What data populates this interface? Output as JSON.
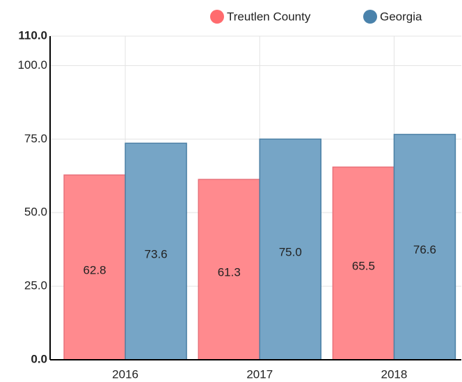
{
  "chart_data": {
    "type": "bar",
    "categories": [
      "2016",
      "2017",
      "2018"
    ],
    "series": [
      {
        "name": "Treutlen County",
        "color": "#ff8a8e",
        "values": [
          62.8,
          61.3,
          65.5
        ],
        "value_labels": [
          "62.8",
          "61.3",
          "65.5"
        ]
      },
      {
        "name": "Georgia",
        "color": "#76a5c6",
        "values": [
          73.6,
          75,
          76.6
        ],
        "value_labels": [
          "73.6",
          "75.0",
          "76.6"
        ]
      }
    ],
    "ylim": [
      0,
      110
    ],
    "yticks": [
      {
        "value": 0,
        "label": "0.0"
      },
      {
        "value": 25,
        "label": "25.0"
      },
      {
        "value": 50,
        "label": "50.0"
      },
      {
        "value": 75,
        "label": "75.0"
      },
      {
        "value": 100,
        "label": "100.0"
      },
      {
        "value": 110,
        "label": "110.0"
      }
    ],
    "grid": true,
    "legend": "top"
  }
}
